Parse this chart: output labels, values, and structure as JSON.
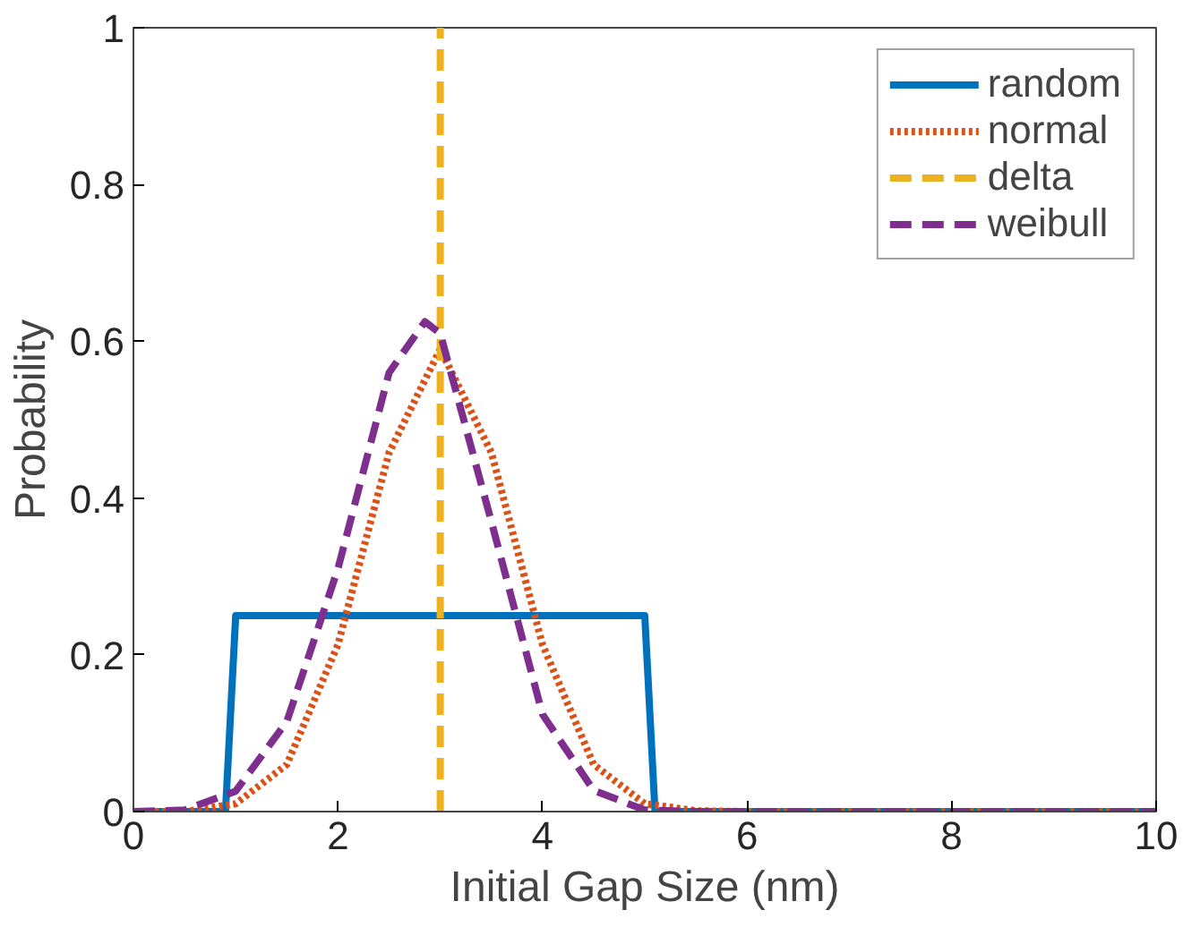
{
  "chart_data": {
    "type": "line",
    "xlabel": "Initial Gap Size (nm)",
    "ylabel": "Probability",
    "xlim": [
      0,
      10
    ],
    "ylim": [
      0,
      1
    ],
    "xticks": [
      0,
      2,
      4,
      6,
      8,
      10
    ],
    "yticks": [
      0,
      0.2,
      0.4,
      0.6,
      0.8,
      1
    ],
    "grid": false,
    "legend": "top right",
    "series": [
      {
        "name": "random",
        "color": "#0072bd",
        "line_style": "solid",
        "x": [
          0,
          0.9,
          1,
          5,
          5.1,
          10
        ],
        "values": [
          0,
          0,
          0.25,
          0.25,
          0,
          0
        ]
      },
      {
        "name": "normal",
        "color": "#d95319",
        "line_style": "dotted",
        "x": [
          0,
          0.5,
          1,
          1.5,
          2,
          2.5,
          3,
          3.5,
          4,
          4.5,
          5,
          5.5,
          6,
          10
        ],
        "values": [
          0,
          0,
          0.01,
          0.06,
          0.213,
          0.458,
          0.59,
          0.458,
          0.213,
          0.06,
          0.01,
          0.001,
          0,
          0
        ]
      },
      {
        "name": "delta",
        "color": "#edb120",
        "line_style": "dashed",
        "x": [
          3,
          3
        ],
        "values": [
          0,
          1
        ]
      },
      {
        "name": "weibull",
        "color": "#7e2f8e",
        "line_style": "dashed",
        "x": [
          0,
          0.5,
          1,
          1.5,
          2,
          2.5,
          2.85,
          3,
          3.5,
          4,
          4.5,
          5,
          5.5,
          10
        ],
        "values": [
          0,
          0.002,
          0.026,
          0.115,
          0.31,
          0.56,
          0.625,
          0.61,
          0.37,
          0.124,
          0.027,
          0.002,
          0,
          0
        ]
      }
    ]
  }
}
